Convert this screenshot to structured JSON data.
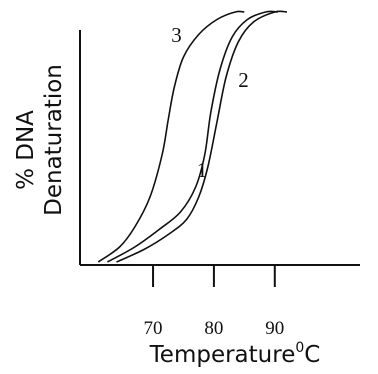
{
  "chart_data": {
    "type": "line",
    "xlabel": "Temperature",
    "xlabel_superscript": "0",
    "xlabel_unit": "C",
    "ylabel_line1": "% DNA",
    "ylabel_line2": "Denaturation",
    "x_ticks": [
      {
        "value": 70,
        "label": "70"
      },
      {
        "value": 80,
        "label": "80"
      },
      {
        "value": 90,
        "label": "90"
      }
    ],
    "xlim": [
      58,
      104
    ],
    "ylim": [
      0,
      100
    ],
    "y_ticks_shown": false,
    "grid": false,
    "legend": "none",
    "series": [
      {
        "label": "1",
        "x": [
          64.0,
          68.5,
          72.5,
          75.5,
          77.5,
          79.0,
          80.5,
          82.0,
          84.0,
          86.5,
          90.0,
          92.0
        ],
        "y": [
          0,
          5,
          11,
          17,
          26,
          38,
          56,
          74,
          88,
          96,
          100,
          100
        ]
      },
      {
        "label": "2",
        "x": [
          62.5,
          67.0,
          71.0,
          74.5,
          77.0,
          78.5,
          79.5,
          81.0,
          83.0,
          85.5,
          88.5,
          90.5
        ],
        "y": [
          0,
          6,
          13,
          20,
          30,
          43,
          60,
          77,
          90,
          97,
          100,
          100
        ]
      },
      {
        "label": "3",
        "x": [
          61.0,
          64.5,
          67.0,
          69.5,
          71.5,
          72.5,
          73.5,
          75.0,
          77.5,
          80.5,
          83.5,
          85.0
        ],
        "y": [
          0,
          6,
          14,
          26,
          43,
          57,
          70,
          82,
          91,
          97,
          100,
          100
        ]
      }
    ],
    "curve_label_positions": [
      {
        "series": "1",
        "x": 77.2,
        "y": 34
      },
      {
        "series": "2",
        "x": 84.0,
        "y": 70
      },
      {
        "series": "3",
        "x": 73.0,
        "y": 88
      }
    ],
    "colors": {
      "line": "#111111",
      "axis": "#111111",
      "background": "#ffffff"
    }
  }
}
